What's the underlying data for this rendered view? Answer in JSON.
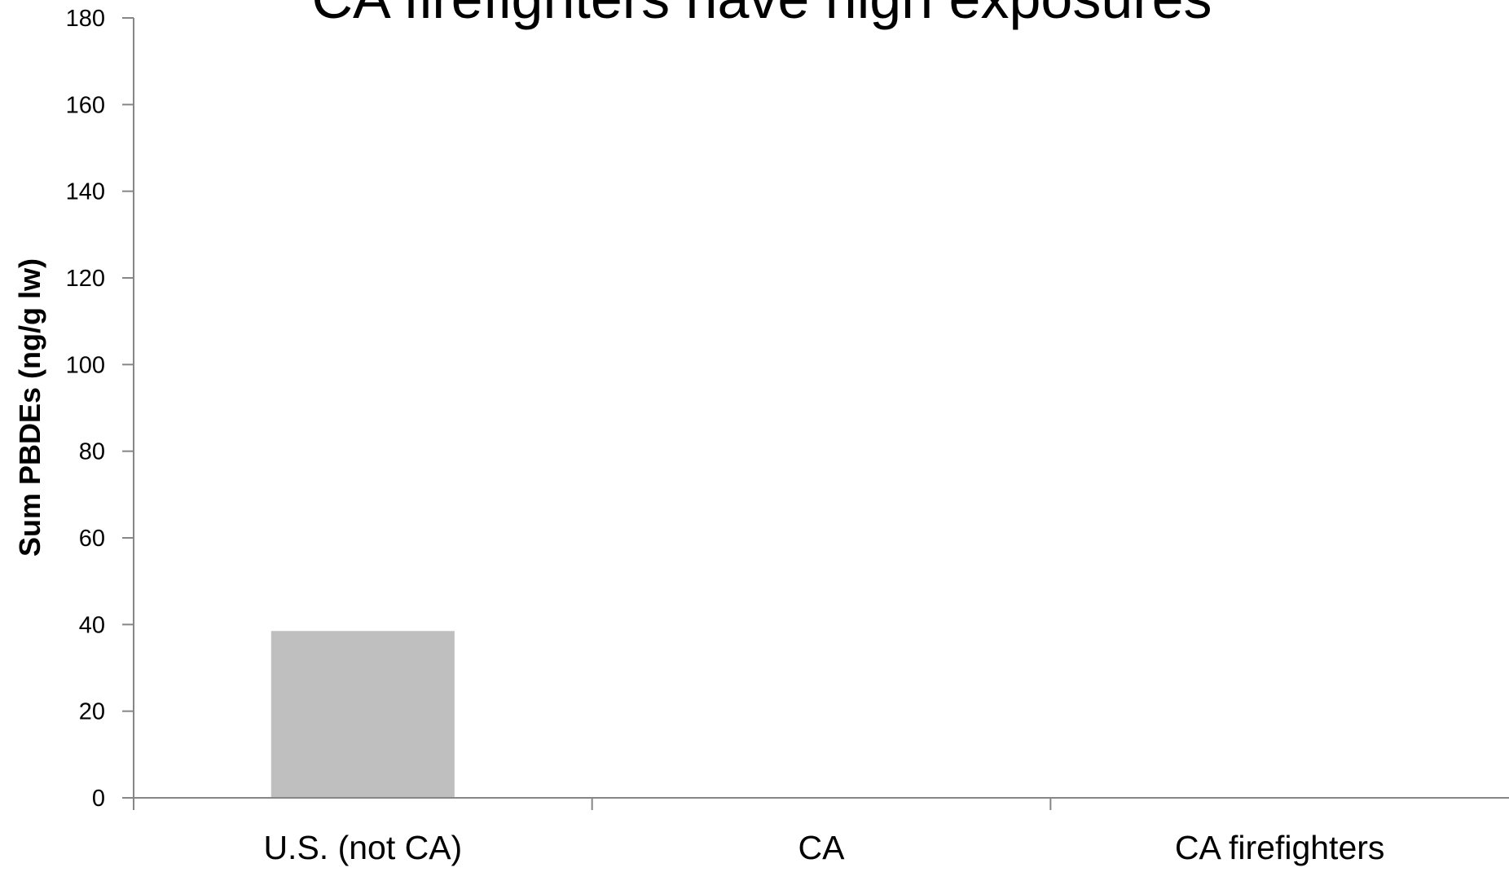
{
  "chart_data": {
    "type": "bar",
    "title": "CA firefighters have high exposures",
    "ylabel": "Sum PBDEs (ng/g lw)",
    "xlabel": "",
    "categories": [
      "U.S. (not CA)",
      "CA",
      "CA firefighters"
    ],
    "values": [
      38.5,
      0,
      0
    ],
    "ylim": [
      0,
      180
    ],
    "yticks": [
      0,
      20,
      40,
      60,
      80,
      100,
      120,
      140,
      160,
      180
    ],
    "grid": false,
    "legend": "none",
    "colors": {
      "bar": "#bfbfbf",
      "axis": "#868686",
      "text": "#000000"
    }
  }
}
